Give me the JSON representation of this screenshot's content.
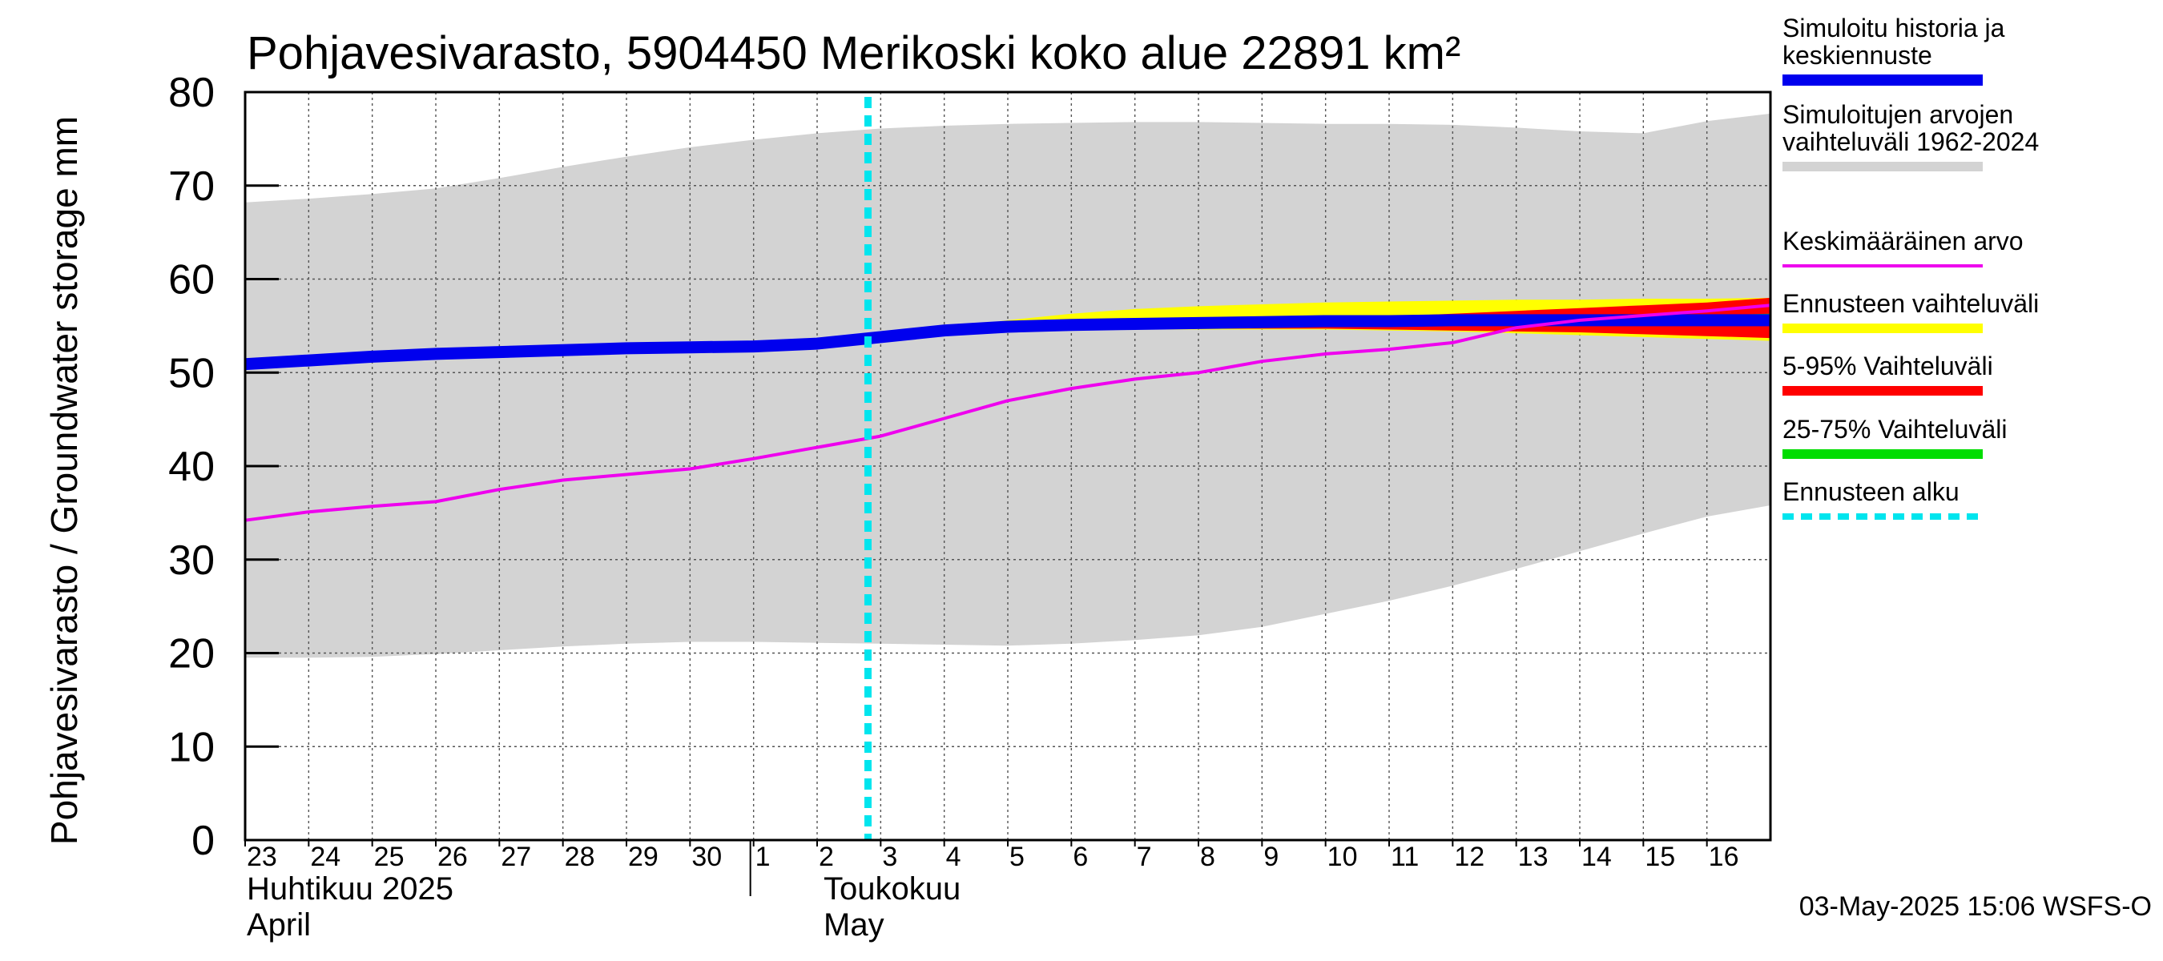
{
  "chart_data": {
    "type": "line",
    "title": "Pohjavesivarasto, 5904450 Merikoski koko alue 22891 km²",
    "ylabel": "Pohjavesivarasto / Groundwater storage   mm",
    "ylim": [
      0,
      80
    ],
    "yticks": [
      0,
      10,
      20,
      30,
      40,
      50,
      60,
      70,
      80
    ],
    "x_day_labels": [
      "23",
      "24",
      "25",
      "26",
      "27",
      "28",
      "29",
      "30",
      "1",
      "2",
      "3",
      "4",
      "5",
      "6",
      "7",
      "8",
      "9",
      "10",
      "11",
      "12",
      "13",
      "14",
      "15",
      "16"
    ],
    "month_labels": [
      {
        "line1": "Huhtikuu  2025",
        "line2": "April",
        "day_index": 0
      },
      {
        "line1": "Toukokuu",
        "line2": "May",
        "day_index": 9
      }
    ],
    "month_divider_day_index": 8,
    "forecast_start_day_index": 9.8,
    "footer": "03-May-2025 15:06 WSFS-O",
    "legend": [
      {
        "label": "Simuloitu historia ja keskiennuste",
        "color": "#0000ee",
        "style": "thick"
      },
      {
        "label": "Simuloitujen arvojen vaihteluväli 1962-2024",
        "color": "#d3d3d3",
        "style": "medium"
      },
      {
        "label": "Keskimääräinen arvo",
        "color": "#ee00ee",
        "style": "thin"
      },
      {
        "label": "Ennusteen vaihteluväli",
        "color": "#ffff00",
        "style": "medium"
      },
      {
        "label": "5-95% Vaihteluväli",
        "color": "#ff0000",
        "style": "medium"
      },
      {
        "label": "25-75% Vaihteluväli",
        "color": "#00dd00",
        "style": "medium"
      },
      {
        "label": "Ennusteen alku",
        "color": "#00e5ee",
        "style": "dashed"
      }
    ],
    "series": [
      {
        "name": "Simuloitujen arvojen vaihteluväli 1962-2024 (max)",
        "x": [
          0,
          1,
          2,
          3,
          4,
          5,
          6,
          7,
          8,
          9,
          10,
          11,
          12,
          13,
          14,
          15,
          16,
          17,
          18,
          19,
          20,
          21,
          22,
          23,
          24
        ],
        "values": [
          68.2,
          68.6,
          69.1,
          69.7,
          70.8,
          72.0,
          73.1,
          74.1,
          74.9,
          75.6,
          76.1,
          76.4,
          76.6,
          76.7,
          76.8,
          76.8,
          76.7,
          76.6,
          76.6,
          76.5,
          76.2,
          75.8,
          75.6,
          76.9,
          77.7
        ]
      },
      {
        "name": "Simuloitujen arvojen vaihteluväli 1962-2024 (min)",
        "x": [
          0,
          1,
          2,
          3,
          4,
          5,
          6,
          7,
          8,
          9,
          10,
          11,
          12,
          13,
          14,
          15,
          16,
          17,
          18,
          19,
          20,
          21,
          22,
          23,
          24
        ],
        "values": [
          19.5,
          19.5,
          19.6,
          19.9,
          20.3,
          20.7,
          21.0,
          21.2,
          21.2,
          21.1,
          21.0,
          20.9,
          20.8,
          21.0,
          21.4,
          21.9,
          22.8,
          24.2,
          25.6,
          27.2,
          29.0,
          30.9,
          32.8,
          34.6,
          35.8
        ]
      },
      {
        "name": "Ennusteen vaihteluväli (max)",
        "x": [
          9.8,
          11,
          12,
          13,
          14,
          15,
          16,
          17,
          18,
          19,
          20,
          21,
          22,
          23,
          24
        ],
        "values": [
          53.6,
          54.8,
          55.6,
          56.3,
          56.8,
          57.1,
          57.3,
          57.5,
          57.6,
          57.7,
          57.8,
          57.8,
          57.9,
          57.9,
          58.0
        ]
      },
      {
        "name": "Ennusteen vaihteluväli (min)",
        "x": [
          9.8,
          11,
          12,
          13,
          14,
          15,
          16,
          17,
          18,
          19,
          20,
          21,
          22,
          23,
          24
        ],
        "values": [
          53.6,
          54.2,
          54.5,
          54.6,
          54.6,
          54.6,
          54.6,
          54.6,
          54.5,
          54.4,
          54.2,
          54.0,
          53.8,
          53.6,
          53.4
        ]
      },
      {
        "name": "5-95% Vaihteluväli (max)",
        "x": [
          9.8,
          11,
          12,
          13,
          14,
          15,
          16,
          17,
          18,
          19,
          20,
          21,
          22,
          23,
          24
        ],
        "values": [
          53.6,
          54.6,
          55.0,
          55.2,
          55.4,
          55.5,
          55.6,
          55.8,
          56.0,
          56.3,
          56.6,
          56.9,
          57.2,
          57.5,
          58.0
        ]
      },
      {
        "name": "5-95% Vaihteluväli (min)",
        "x": [
          9.8,
          11,
          12,
          13,
          14,
          15,
          16,
          17,
          18,
          19,
          20,
          21,
          22,
          23,
          24
        ],
        "values": [
          53.6,
          54.3,
          54.6,
          54.7,
          54.7,
          54.7,
          54.7,
          54.7,
          54.6,
          54.5,
          54.4,
          54.3,
          54.1,
          53.9,
          53.7
        ]
      },
      {
        "name": "25-75% Vaihteluväli (max)",
        "x": [
          9.8,
          11,
          12,
          13,
          14,
          15,
          16,
          17,
          18,
          19,
          20,
          21,
          22,
          23,
          24
        ],
        "values": [
          53.6,
          54.5,
          54.9,
          55.1,
          55.2,
          55.3,
          55.4,
          55.5,
          55.6,
          55.7,
          55.8,
          55.9,
          56.0,
          56.1,
          56.3
        ]
      },
      {
        "name": "25-75% Vaihteluväli (min)",
        "x": [
          9.8,
          11,
          12,
          13,
          14,
          15,
          16,
          17,
          18,
          19,
          20,
          21,
          22,
          23,
          24
        ],
        "values": [
          53.6,
          54.3,
          54.7,
          54.9,
          54.9,
          55.0,
          55.0,
          55.0,
          55.0,
          55.0,
          55.0,
          55.0,
          55.0,
          55.0,
          55.0
        ]
      },
      {
        "name": "Simuloitu historia ja keskiennuste",
        "x": [
          0,
          1,
          2,
          3,
          4,
          5,
          6,
          7,
          8,
          9,
          10,
          11,
          12,
          13,
          14,
          15,
          16,
          17,
          18,
          19,
          20,
          21,
          22,
          23,
          24
        ],
        "values": [
          50.9,
          51.3,
          51.7,
          52.0,
          52.2,
          52.4,
          52.6,
          52.7,
          52.8,
          53.1,
          53.8,
          54.5,
          54.9,
          55.1,
          55.2,
          55.3,
          55.4,
          55.5,
          55.5,
          55.6,
          55.6,
          55.6,
          55.6,
          55.6,
          55.6
        ]
      },
      {
        "name": "Keskimääräinen arvo",
        "x": [
          0,
          1,
          2,
          3,
          4,
          5,
          6,
          7,
          8,
          9,
          10,
          11,
          12,
          13,
          14,
          15,
          16,
          17,
          18,
          19,
          20,
          21,
          22,
          23,
          24
        ],
        "values": [
          34.2,
          35.1,
          35.7,
          36.2,
          37.5,
          38.5,
          39.1,
          39.7,
          40.8,
          42.0,
          43.2,
          45.1,
          47.0,
          48.3,
          49.3,
          50.0,
          51.2,
          52.0,
          52.5,
          53.2,
          54.8,
          55.6,
          56.1,
          56.6,
          57.2
        ]
      }
    ]
  }
}
